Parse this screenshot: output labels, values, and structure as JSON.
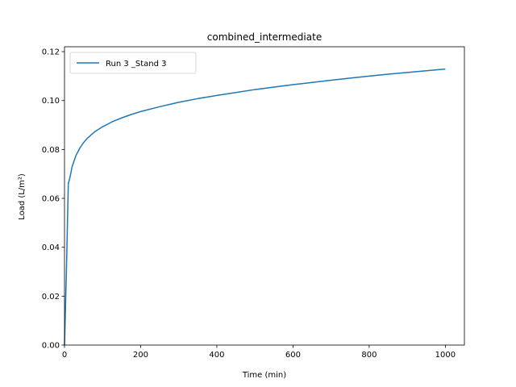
{
  "chart_data": {
    "type": "line",
    "title": "combined_intermediate",
    "xlabel": "Time (min)",
    "ylabel": "Load (L/m²)",
    "xlim": [
      0,
      1050
    ],
    "ylim": [
      0,
      0.122
    ],
    "xticks": [
      0,
      200,
      400,
      600,
      800,
      1000
    ],
    "yticks": [
      0,
      0.02,
      0.04,
      0.06,
      0.08,
      0.1,
      0.12
    ],
    "xtick_labels": [
      "0",
      "200",
      "400",
      "600",
      "800",
      "1000"
    ],
    "ytick_labels": [
      "0.00",
      "0.02",
      "0.04",
      "0.06",
      "0.08",
      "0.10",
      "0.12"
    ],
    "legend_position": "upper-left",
    "grid": false,
    "series": [
      {
        "name": "Run 3 _Stand 3",
        "color": "#1f77b4",
        "x": [
          0,
          5,
          10,
          15,
          20,
          30,
          40,
          50,
          60,
          80,
          100,
          125,
          150,
          175,
          200,
          250,
          300,
          350,
          400,
          450,
          500,
          550,
          600,
          650,
          700,
          750,
          800,
          850,
          900,
          950,
          1000
        ],
        "y": [
          0,
          0.03,
          0.066,
          0.069,
          0.073,
          0.0775,
          0.0805,
          0.0828,
          0.0846,
          0.0873,
          0.0893,
          0.0913,
          0.0929,
          0.0943,
          0.0955,
          0.0975,
          0.0993,
          0.1008,
          0.1021,
          0.1033,
          0.1045,
          0.1055,
          0.1065,
          0.1074,
          0.1083,
          0.1092,
          0.11,
          0.1108,
          0.1115,
          0.1122,
          0.1129
        ]
      }
    ]
  }
}
